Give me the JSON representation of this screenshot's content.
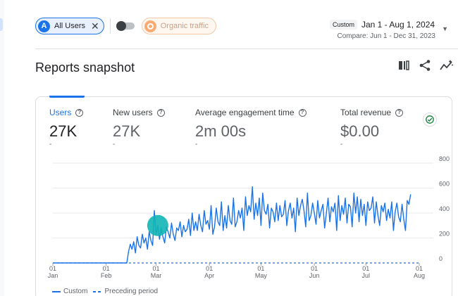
{
  "filters": {
    "audience_badge": "A",
    "audience_label": "All Users",
    "close_glyph": "✕",
    "comparison_label": "Organic traffic"
  },
  "date_range": {
    "tag": "Custom",
    "main": "Jan 1 - Aug 1, 2024",
    "compare": "Compare: Jun 1 - Dec 31, 2023",
    "caret": "▼"
  },
  "snapshot": {
    "title": "Reports snapshot",
    "icons": [
      "compare-columns-icon",
      "share-icon",
      "insights-icon"
    ]
  },
  "metrics": [
    {
      "label": "Users",
      "value": "27K",
      "delta": "-",
      "active": true
    },
    {
      "label": "New users",
      "value": "27K",
      "delta": "-",
      "active": false
    },
    {
      "label": "Average engagement time",
      "value": "2m 00s",
      "delta": "-",
      "active": false
    },
    {
      "label": "Total revenue",
      "value": "$0.00",
      "delta": "-",
      "active": false
    }
  ],
  "legend": {
    "current": "Custom",
    "previous": "Preceding period"
  },
  "colors": {
    "accent": "#1a73e8",
    "highlight": "#12b5b5",
    "success": "#188038"
  },
  "chart_data": {
    "type": "line",
    "y_ticks": [
      0,
      200,
      400,
      600,
      800
    ],
    "ylim": [
      0,
      800
    ],
    "x_ticks": [
      {
        "day": 1,
        "top": "01",
        "bottom": "Jan"
      },
      {
        "day": 32,
        "top": "01",
        "bottom": "Feb"
      },
      {
        "day": 61,
        "top": "01",
        "bottom": "Mar"
      },
      {
        "day": 92,
        "top": "01",
        "bottom": "Apr"
      },
      {
        "day": 122,
        "top": "01",
        "bottom": "May"
      },
      {
        "day": 153,
        "top": "01",
        "bottom": "Jun"
      },
      {
        "day": 183,
        "top": "01",
        "bottom": "Jul"
      },
      {
        "day": 214,
        "top": "01",
        "bottom": "Aug"
      }
    ],
    "x_range": [
      1,
      214
    ],
    "series": [
      {
        "name": "Custom",
        "style": "solid",
        "values": [
          0,
          0,
          0,
          0,
          0,
          0,
          0,
          0,
          0,
          0,
          0,
          0,
          0,
          0,
          0,
          0,
          0,
          0,
          0,
          0,
          0,
          0,
          0,
          0,
          0,
          0,
          0,
          0,
          0,
          0,
          0,
          0,
          0,
          0,
          0,
          0,
          0,
          0,
          0,
          0,
          0,
          0,
          0,
          0,
          90,
          150,
          110,
          170,
          80,
          210,
          140,
          120,
          230,
          160,
          200,
          110,
          250,
          180,
          140,
          420,
          230,
          300,
          190,
          280,
          210,
          160,
          290,
          250,
          200,
          320,
          230,
          180,
          280,
          260,
          330,
          210,
          300,
          250,
          270,
          350,
          220,
          400,
          260,
          330,
          260,
          390,
          300,
          250,
          420,
          310,
          340,
          270,
          460,
          230,
          290,
          440,
          330,
          300,
          490,
          260,
          380,
          280,
          460,
          340,
          310,
          520,
          290,
          330,
          420,
          360,
          440,
          260,
          530,
          380,
          460,
          410,
          610,
          350,
          480,
          380,
          520,
          300,
          560,
          420,
          390,
          470,
          280,
          440,
          410,
          330,
          480,
          340,
          460,
          370,
          390,
          500,
          300,
          420,
          480,
          360,
          440,
          250,
          520,
          380,
          460,
          510,
          420,
          290,
          560,
          340,
          380,
          480,
          400,
          310,
          500,
          360,
          420,
          470,
          280,
          400,
          520,
          330,
          450,
          410,
          480,
          260,
          540,
          340,
          460,
          390,
          520,
          320,
          470,
          450,
          290,
          560,
          400,
          530,
          330,
          510,
          380,
          470,
          300,
          490,
          420,
          440,
          530,
          320,
          490,
          380,
          300,
          460,
          410,
          480,
          340,
          430,
          360,
          490,
          260,
          410,
          480,
          370,
          330,
          470,
          350,
          260,
          500,
          470,
          550
        ],
        "highlight_day": 62,
        "highlight_value": 300
      },
      {
        "name": "Preceding period",
        "style": "dashed",
        "values_constant": 0
      }
    ]
  }
}
